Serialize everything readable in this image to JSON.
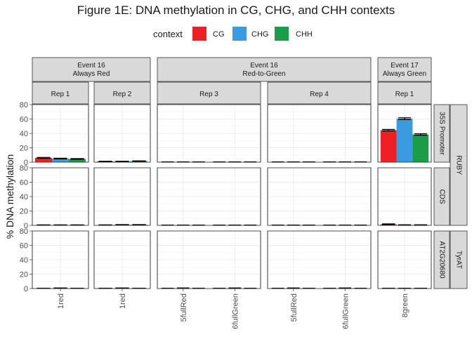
{
  "chart_data": {
    "type": "bar",
    "title": "Figure 1E: DNA methylation in CG, CHG, and CHH contexts",
    "ylabel": "% DNA methylation",
    "xlabel": "",
    "ylim": [
      0,
      80
    ],
    "yticks": [
      0,
      20,
      40,
      60,
      80
    ],
    "grid": true,
    "legend": {
      "position": "top",
      "title": "context",
      "entries": [
        {
          "name": "CG",
          "color": "#ee2024"
        },
        {
          "name": "CHG",
          "color": "#3a9be0"
        },
        {
          "name": "CHH",
          "color": "#1a9c48"
        }
      ]
    },
    "event_strips": [
      {
        "line1": "Event 16",
        "line2": "Always Red"
      },
      {
        "line1": "Event 16",
        "line2": "Red-to-Green"
      },
      {
        "line1": "Event 17",
        "line2": "Always Green"
      }
    ],
    "rep_strips": [
      "Rep 1",
      "Rep 2",
      "Rep 3",
      "Rep 4",
      "Rep 1"
    ],
    "column_categories": [
      [
        "1red"
      ],
      [
        "1red"
      ],
      [
        "5fullRed",
        "6fullGreen"
      ],
      [
        "5fullRed",
        "6fullGreen"
      ],
      [
        "8green"
      ]
    ],
    "row_strips": [
      {
        "region": "35S Promoter",
        "target": "RUBY"
      },
      {
        "region": "CDS",
        "target": "RUBY"
      },
      {
        "region": "AT2G20680",
        "target": "TyrAT"
      }
    ],
    "group_strips": [
      "RUBY",
      "TyrAT"
    ],
    "values": [
      [
        [
          [
            6.0,
            5.0,
            4.5
          ]
        ],
        [
          [
            1.0,
            1.0,
            1.5
          ]
        ],
        [
          [
            0.3,
            0.3,
            0.3
          ],
          [
            0.3,
            0.3,
            0.3
          ]
        ],
        [
          [
            0.3,
            0.3,
            0.3
          ],
          [
            0.3,
            0.3,
            0.3
          ]
        ],
        [
          [
            44.5,
            60.5,
            38.5
          ]
        ]
      ],
      [
        [
          [
            0.5,
            0.5,
            0.5
          ]
        ],
        [
          [
            0.5,
            0.8,
            0.8
          ]
        ],
        [
          [
            0.3,
            0.3,
            0.3
          ],
          [
            0.3,
            0.3,
            0.3
          ]
        ],
        [
          [
            0.3,
            0.3,
            0.3
          ],
          [
            0.3,
            0.3,
            0.3
          ]
        ],
        [
          [
            1.5,
            0.5,
            0.5
          ]
        ]
      ],
      [
        [
          [
            0.3,
            0.5,
            0.3
          ]
        ],
        [
          [
            0.3,
            0.5,
            0.3
          ]
        ],
        [
          [
            0.3,
            0.5,
            0.3
          ],
          [
            0.3,
            0.5,
            0.3
          ]
        ],
        [
          [
            0.3,
            0.5,
            0.3
          ],
          [
            0.3,
            0.5,
            0.3
          ]
        ],
        [
          [
            0.3,
            0.3,
            0.3
          ]
        ]
      ]
    ],
    "errors": [
      [
        [
          [
            0.6,
            0.5,
            0.5
          ]
        ],
        [
          [
            0.3,
            0.3,
            0.3
          ]
        ],
        [
          [
            0.2,
            0.2,
            0.2
          ],
          [
            0.2,
            0.2,
            0.2
          ]
        ],
        [
          [
            0.2,
            0.2,
            0.2
          ],
          [
            0.2,
            0.2,
            0.2
          ]
        ],
        [
          [
            1.0,
            1.2,
            1.0
          ]
        ]
      ],
      [
        [
          [
            0.2,
            0.2,
            0.2
          ]
        ],
        [
          [
            0.2,
            0.3,
            0.3
          ]
        ],
        [
          [
            0.2,
            0.2,
            0.2
          ],
          [
            0.2,
            0.2,
            0.2
          ]
        ],
        [
          [
            0.2,
            0.2,
            0.2
          ],
          [
            0.2,
            0.2,
            0.2
          ]
        ],
        [
          [
            0.5,
            0.3,
            0.3
          ]
        ]
      ],
      [
        [
          [
            0.2,
            0.3,
            0.2
          ]
        ],
        [
          [
            0.2,
            0.3,
            0.2
          ]
        ],
        [
          [
            0.2,
            0.3,
            0.2
          ],
          [
            0.2,
            0.3,
            0.2
          ]
        ],
        [
          [
            0.2,
            0.3,
            0.2
          ],
          [
            0.2,
            0.3,
            0.2
          ]
        ],
        [
          [
            0.2,
            0.2,
            0.2
          ]
        ]
      ]
    ]
  }
}
